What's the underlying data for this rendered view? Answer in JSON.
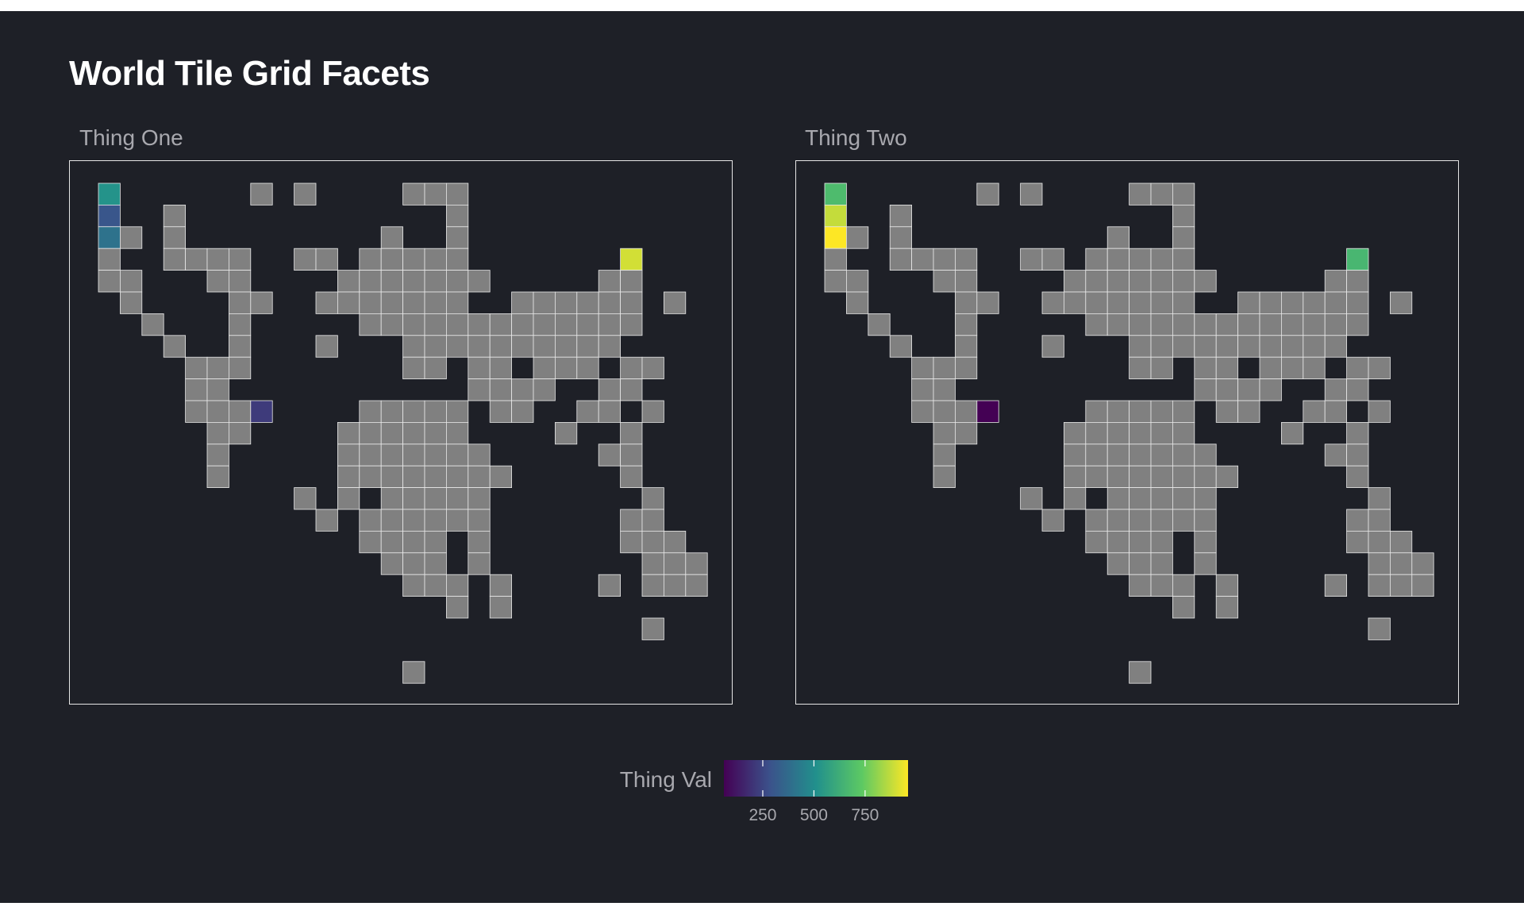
{
  "chart_data": {
    "type": "heatmap",
    "title": "World Tile Grid Facets",
    "legend": {
      "title": "Thing Val",
      "placement": "bottom",
      "range": [
        60,
        960
      ],
      "breaks": [
        250,
        500,
        750
      ],
      "palette": "viridis",
      "stops": [
        "#440154",
        "#3b528b",
        "#21908c",
        "#5dc963",
        "#fde725"
      ],
      "na_color": "#808080"
    },
    "grid": {
      "cols": 28,
      "rows": 23
    },
    "tiles": [
      [
        0,
        0
      ],
      [
        7,
        0
      ],
      [
        9,
        0
      ],
      [
        14,
        0
      ],
      [
        15,
        0
      ],
      [
        16,
        0
      ],
      [
        0,
        1
      ],
      [
        3,
        1
      ],
      [
        16,
        1
      ],
      [
        0,
        2
      ],
      [
        1,
        2
      ],
      [
        3,
        2
      ],
      [
        13,
        2
      ],
      [
        16,
        2
      ],
      [
        0,
        3
      ],
      [
        3,
        3
      ],
      [
        4,
        3
      ],
      [
        5,
        3
      ],
      [
        6,
        3
      ],
      [
        9,
        3
      ],
      [
        10,
        3
      ],
      [
        12,
        3
      ],
      [
        13,
        3
      ],
      [
        14,
        3
      ],
      [
        15,
        3
      ],
      [
        16,
        3
      ],
      [
        24,
        3
      ],
      [
        0,
        4
      ],
      [
        1,
        4
      ],
      [
        5,
        4
      ],
      [
        6,
        4
      ],
      [
        11,
        4
      ],
      [
        12,
        4
      ],
      [
        13,
        4
      ],
      [
        14,
        4
      ],
      [
        15,
        4
      ],
      [
        16,
        4
      ],
      [
        17,
        4
      ],
      [
        23,
        4
      ],
      [
        24,
        4
      ],
      [
        1,
        5
      ],
      [
        6,
        5
      ],
      [
        7,
        5
      ],
      [
        10,
        5
      ],
      [
        11,
        5
      ],
      [
        12,
        5
      ],
      [
        13,
        5
      ],
      [
        14,
        5
      ],
      [
        15,
        5
      ],
      [
        16,
        5
      ],
      [
        19,
        5
      ],
      [
        20,
        5
      ],
      [
        21,
        5
      ],
      [
        22,
        5
      ],
      [
        23,
        5
      ],
      [
        24,
        5
      ],
      [
        26,
        5
      ],
      [
        2,
        6
      ],
      [
        6,
        6
      ],
      [
        12,
        6
      ],
      [
        13,
        6
      ],
      [
        14,
        6
      ],
      [
        15,
        6
      ],
      [
        16,
        6
      ],
      [
        17,
        6
      ],
      [
        18,
        6
      ],
      [
        19,
        6
      ],
      [
        20,
        6
      ],
      [
        21,
        6
      ],
      [
        22,
        6
      ],
      [
        23,
        6
      ],
      [
        24,
        6
      ],
      [
        3,
        7
      ],
      [
        6,
        7
      ],
      [
        10,
        7
      ],
      [
        14,
        7
      ],
      [
        15,
        7
      ],
      [
        16,
        7
      ],
      [
        17,
        7
      ],
      [
        18,
        7
      ],
      [
        19,
        7
      ],
      [
        20,
        7
      ],
      [
        21,
        7
      ],
      [
        22,
        7
      ],
      [
        23,
        7
      ],
      [
        4,
        8
      ],
      [
        5,
        8
      ],
      [
        6,
        8
      ],
      [
        14,
        8
      ],
      [
        15,
        8
      ],
      [
        17,
        8
      ],
      [
        18,
        8
      ],
      [
        20,
        8
      ],
      [
        21,
        8
      ],
      [
        22,
        8
      ],
      [
        24,
        8
      ],
      [
        25,
        8
      ],
      [
        4,
        9
      ],
      [
        5,
        9
      ],
      [
        17,
        9
      ],
      [
        18,
        9
      ],
      [
        19,
        9
      ],
      [
        20,
        9
      ],
      [
        23,
        9
      ],
      [
        24,
        9
      ],
      [
        4,
        10
      ],
      [
        5,
        10
      ],
      [
        6,
        10
      ],
      [
        7,
        10
      ],
      [
        12,
        10
      ],
      [
        13,
        10
      ],
      [
        14,
        10
      ],
      [
        15,
        10
      ],
      [
        16,
        10
      ],
      [
        18,
        10
      ],
      [
        19,
        10
      ],
      [
        22,
        10
      ],
      [
        23,
        10
      ],
      [
        25,
        10
      ],
      [
        5,
        11
      ],
      [
        6,
        11
      ],
      [
        11,
        11
      ],
      [
        12,
        11
      ],
      [
        13,
        11
      ],
      [
        14,
        11
      ],
      [
        15,
        11
      ],
      [
        16,
        11
      ],
      [
        21,
        11
      ],
      [
        24,
        11
      ],
      [
        5,
        12
      ],
      [
        11,
        12
      ],
      [
        12,
        12
      ],
      [
        13,
        12
      ],
      [
        14,
        12
      ],
      [
        15,
        12
      ],
      [
        16,
        12
      ],
      [
        17,
        12
      ],
      [
        23,
        12
      ],
      [
        24,
        12
      ],
      [
        5,
        13
      ],
      [
        11,
        13
      ],
      [
        12,
        13
      ],
      [
        13,
        13
      ],
      [
        14,
        13
      ],
      [
        15,
        13
      ],
      [
        16,
        13
      ],
      [
        17,
        13
      ],
      [
        18,
        13
      ],
      [
        24,
        13
      ],
      [
        9,
        14
      ],
      [
        11,
        14
      ],
      [
        13,
        14
      ],
      [
        14,
        14
      ],
      [
        15,
        14
      ],
      [
        16,
        14
      ],
      [
        17,
        14
      ],
      [
        25,
        14
      ],
      [
        10,
        15
      ],
      [
        12,
        15
      ],
      [
        13,
        15
      ],
      [
        14,
        15
      ],
      [
        15,
        15
      ],
      [
        16,
        15
      ],
      [
        17,
        15
      ],
      [
        24,
        15
      ],
      [
        25,
        15
      ],
      [
        12,
        16
      ],
      [
        13,
        16
      ],
      [
        14,
        16
      ],
      [
        15,
        16
      ],
      [
        17,
        16
      ],
      [
        24,
        16
      ],
      [
        25,
        16
      ],
      [
        26,
        16
      ],
      [
        13,
        17
      ],
      [
        14,
        17
      ],
      [
        15,
        17
      ],
      [
        17,
        17
      ],
      [
        25,
        17
      ],
      [
        26,
        17
      ],
      [
        27,
        17
      ],
      [
        14,
        18
      ],
      [
        15,
        18
      ],
      [
        16,
        18
      ],
      [
        18,
        18
      ],
      [
        23,
        18
      ],
      [
        25,
        18
      ],
      [
        26,
        18
      ],
      [
        27,
        18
      ],
      [
        16,
        19
      ],
      [
        18,
        19
      ],
      [
        25,
        20
      ],
      [
        14,
        22
      ]
    ],
    "facets": [
      {
        "label": "Thing One",
        "values": [
          {
            "tile": [
              0,
              0
            ],
            "value": 520
          },
          {
            "tile": [
              0,
              1
            ],
            "value": 300
          },
          {
            "tile": [
              0,
              2
            ],
            "value": 400
          },
          {
            "tile": [
              7,
              10
            ],
            "value": 220
          },
          {
            "tile": [
              24,
              3
            ],
            "value": 900
          }
        ]
      },
      {
        "label": "Thing Two",
        "values": [
          {
            "tile": [
              0,
              0
            ],
            "value": 680
          },
          {
            "tile": [
              0,
              1
            ],
            "value": 880
          },
          {
            "tile": [
              0,
              2
            ],
            "value": 960
          },
          {
            "tile": [
              7,
              10
            ],
            "value": 60
          },
          {
            "tile": [
              24,
              3
            ],
            "value": 660
          }
        ]
      }
    ]
  }
}
